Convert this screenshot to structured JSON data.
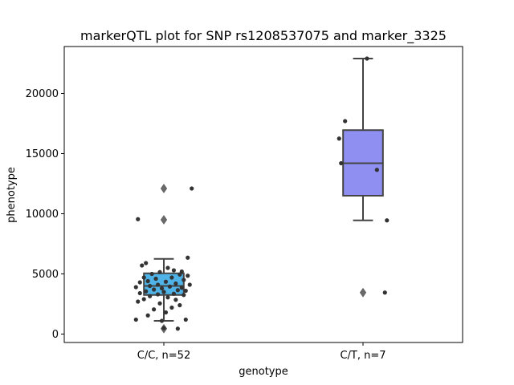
{
  "chart_data": {
    "type": "box",
    "title": "markerQTL plot for SNP rs1208537075 and marker_3325",
    "xlabel": "genotype",
    "ylabel": "phenotype",
    "ylim": [
      -700,
      23900
    ],
    "yticks": [
      0,
      5000,
      10000,
      15000,
      20000
    ],
    "categories": [
      "C/C, n=52",
      "C/T, n=7"
    ],
    "groups": [
      {
        "category": "C/C, n=52",
        "color": "#4fb3e8",
        "box": {
          "min": 1100,
          "q1": 3250,
          "median": 4000,
          "q3": 5050,
          "max": 6250
        },
        "outliers": [
          9500,
          12100,
          450
        ],
        "points": [
          [
            -0.13,
            9550
          ],
          [
            0.14,
            12100
          ],
          [
            0.12,
            6350
          ],
          [
            -0.09,
            5900
          ],
          [
            -0.11,
            5700
          ],
          [
            0.02,
            5500
          ],
          [
            0.05,
            5300
          ],
          [
            0.09,
            5200
          ],
          [
            -0.02,
            5150
          ],
          [
            -0.06,
            5000
          ],
          [
            0.08,
            4950
          ],
          [
            0.12,
            4850
          ],
          [
            -0.1,
            4700
          ],
          [
            0.04,
            4700
          ],
          [
            -0.04,
            4600
          ],
          [
            0.1,
            4500
          ],
          [
            -0.08,
            4400
          ],
          [
            0.01,
            4350
          ],
          [
            -0.12,
            4300
          ],
          [
            0.06,
            4200
          ],
          [
            -0.03,
            4100
          ],
          [
            0.13,
            4100
          ],
          [
            -0.07,
            4000
          ],
          [
            0.03,
            3950
          ],
          [
            -0.14,
            3900
          ],
          [
            0.09,
            3850
          ],
          [
            -0.01,
            3800
          ],
          [
            -0.05,
            3700
          ],
          [
            0.07,
            3650
          ],
          [
            0.11,
            3600
          ],
          [
            -0.09,
            3550
          ],
          [
            0.0,
            3500
          ],
          [
            -0.12,
            3400
          ],
          [
            0.05,
            3350
          ],
          [
            -0.03,
            3300
          ],
          [
            0.1,
            3250
          ],
          [
            -0.07,
            3150
          ],
          [
            0.02,
            3050
          ],
          [
            -0.1,
            2900
          ],
          [
            0.06,
            2850
          ],
          [
            -0.13,
            2700
          ],
          [
            -0.02,
            2550
          ],
          [
            0.08,
            2400
          ],
          [
            0.04,
            2200
          ],
          [
            -0.05,
            2050
          ],
          [
            0.01,
            1800
          ],
          [
            -0.08,
            1550
          ],
          [
            -0.14,
            1200
          ],
          [
            0.11,
            1200
          ],
          [
            -0.01,
            1100
          ],
          [
            0.07,
            450
          ],
          [
            0.0,
            500
          ]
        ]
      },
      {
        "category": "C/T, n=7",
        "color": "#8f8ff2",
        "box": {
          "min": 9450,
          "q1": 11500,
          "median": 14200,
          "q3": 16950,
          "max": 22900
        },
        "outliers": [
          3450
        ],
        "points": [
          [
            0.02,
            22900
          ],
          [
            -0.09,
            17700
          ],
          [
            -0.12,
            16250
          ],
          [
            -0.11,
            14200
          ],
          [
            0.07,
            13650
          ],
          [
            0.12,
            9450
          ],
          [
            0.11,
            3450
          ]
        ]
      }
    ]
  }
}
